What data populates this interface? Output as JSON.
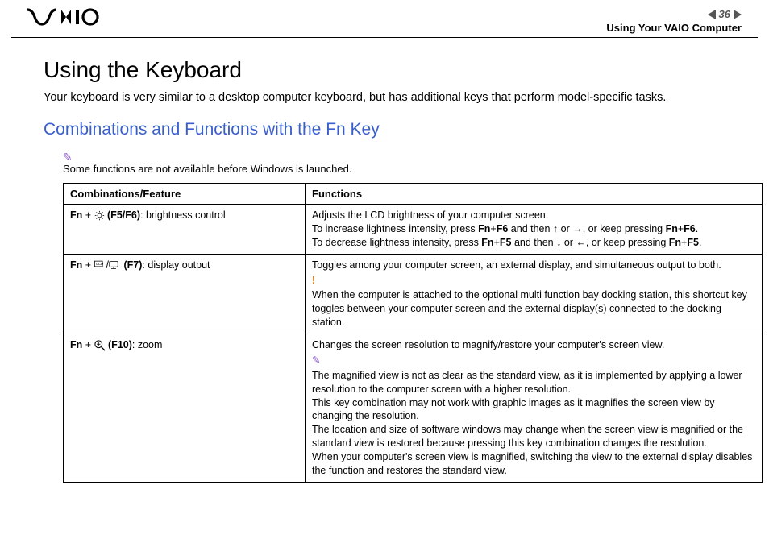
{
  "header": {
    "page_number": "36",
    "section": "Using Your VAIO Computer",
    "logo_text": "VAIO"
  },
  "title": "Using the Keyboard",
  "intro": "Your keyboard is very similar to a desktop computer keyboard, but has additional keys that perform model-specific tasks.",
  "subtitle": "Combinations and Functions with the Fn Key",
  "note": "Some functions are not available before Windows is launched.",
  "table": {
    "col1_header": "Combinations/Feature",
    "col2_header": "Functions",
    "rows": [
      {
        "combo_prefix": "Fn",
        "combo_key": "(F5/F6)",
        "combo_label": ": brightness control",
        "icon": "brightness",
        "func_lines": [
          "Adjusts the LCD brightness of your computer screen.",
          "To increase lightness intensity, press <b>Fn</b>+<b>F6</b> and then <up> or <right>, or keep pressing <b>Fn</b>+<b>F6</b>.",
          "To decrease lightness intensity, press <b>Fn</b>+<b>F5</b> and then <down> or <left>, or keep pressing <b>Fn</b>+<b>F5</b>."
        ]
      },
      {
        "combo_prefix": "Fn",
        "combo_key": "(F7)",
        "combo_label": ": display output",
        "icon": "display",
        "func_lines": [
          "Toggles among your computer screen, an external display, and simultaneous output to both.",
          "<excl>!</excl>",
          "When the computer is attached to the optional multi function bay docking station, this shortcut key toggles between your computer screen and the external display(s) connected to the docking station."
        ]
      },
      {
        "combo_prefix": "Fn",
        "combo_key": "(F10)",
        "combo_label": ": zoom",
        "icon": "zoom",
        "func_lines": [
          "Changes the screen resolution to magnify/restore your computer's screen view.",
          "<pencil>✎</pencil>",
          "The magnified view is not as clear as the standard view, as it is implemented by applying a lower resolution to the computer screen with a higher resolution.",
          "This key combination may not work with graphic images as it magnifies the screen view by changing the resolution.",
          "The location and size of software windows may change when the screen view is magnified or the standard view is restored because pressing this key combination changes the resolution.",
          "When your computer's screen view is magnified, switching the view to the external display disables the function and restores the standard view."
        ]
      }
    ]
  },
  "colors": {
    "heading_blue": "#3a5fcd",
    "note_purple": "#8a5bcc",
    "warn_orange": "#cc6600",
    "nav_gray": "#555555",
    "border": "#000000",
    "background": "#ffffff"
  }
}
